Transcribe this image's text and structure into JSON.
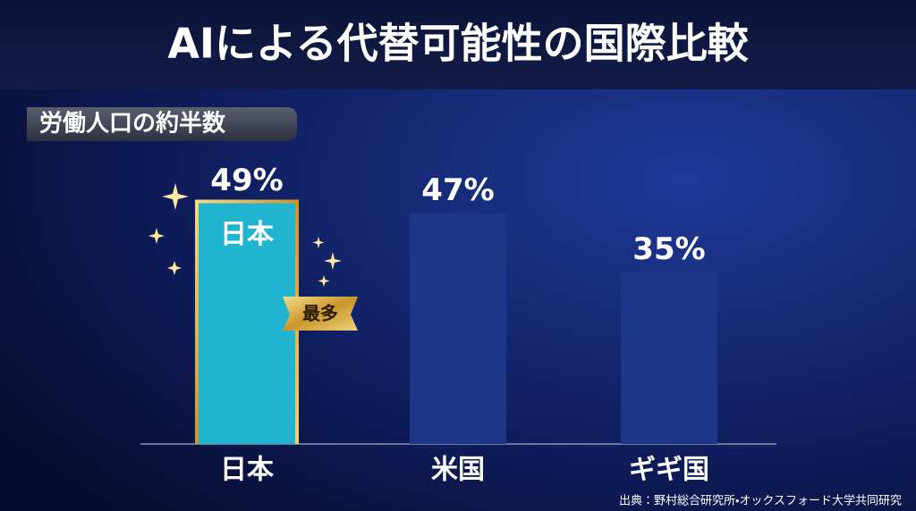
{
  "chart_data": {
    "type": "bar",
    "title": "AIによる代替可能性の国際比較",
    "subtitle": "労働人口の約半数",
    "categories": [
      "日本",
      "米国",
      "ギギ国"
    ],
    "values": [
      49,
      47,
      35
    ],
    "value_labels": [
      "49%",
      "47%",
      "35%"
    ],
    "colors": [
      "#20b4d0",
      "#1e3687",
      "#1e3687"
    ],
    "annotation": "最多",
    "source": "出典：野村総合研究所・オックスフォード大学共同研究"
  }
}
